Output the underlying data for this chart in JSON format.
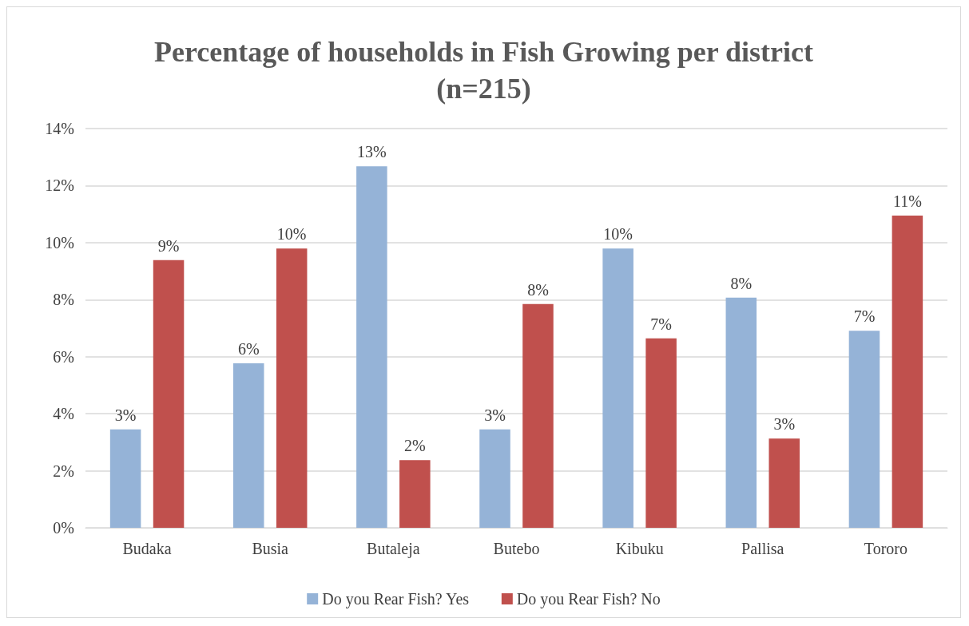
{
  "chart_data": {
    "type": "bar",
    "title": "Percentage of households in Fish Growing per district\n(n=215)",
    "categories": [
      "Budaka",
      "Busia",
      "Butaleja",
      "Butebo",
      "Kibuku",
      "Pallisa",
      "Tororo"
    ],
    "series": [
      {
        "name": "Do you Rear Fish? Yes",
        "color": "#95b3d7",
        "values": [
          3.45,
          5.77,
          12.68,
          3.45,
          9.79,
          8.07,
          6.91
        ],
        "value_labels": [
          "3%",
          "6%",
          "13%",
          "3%",
          "10%",
          "8%",
          "7%"
        ]
      },
      {
        "name": "Do you Rear Fish? No",
        "color": "#c0504d",
        "values": [
          9.39,
          9.79,
          2.37,
          7.85,
          6.64,
          3.13,
          10.95
        ],
        "value_labels": [
          "9%",
          "10%",
          "2%",
          "8%",
          "7%",
          "3%",
          "11%"
        ]
      }
    ],
    "ylim": [
      0,
      14
    ],
    "yticks": [
      {
        "value": 0,
        "label": "0%"
      },
      {
        "value": 2,
        "label": "2%"
      },
      {
        "value": 4,
        "label": "4%"
      },
      {
        "value": 6,
        "label": "6%"
      },
      {
        "value": 8,
        "label": "8%"
      },
      {
        "value": 10,
        "label": "10%"
      },
      {
        "value": 12,
        "label": "12%"
      },
      {
        "value": 14,
        "label": "14%"
      }
    ],
    "grid": "y",
    "legend": "bottom"
  }
}
